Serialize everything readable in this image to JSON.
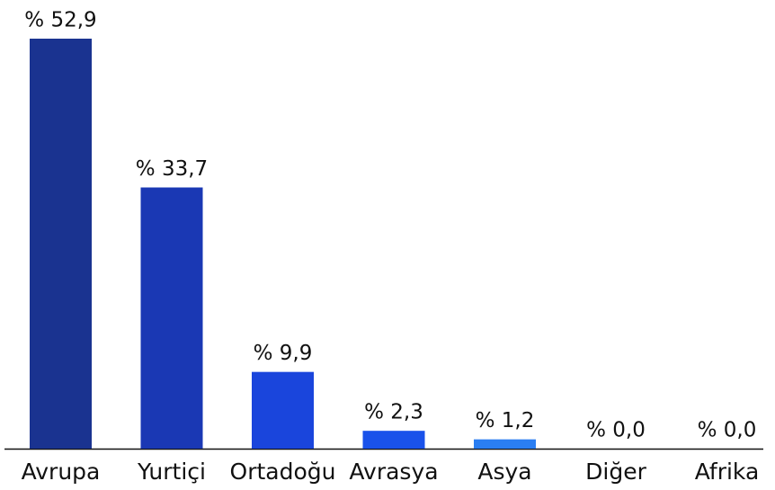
{
  "chart_data": {
    "type": "bar",
    "categories": [
      "Avrupa",
      "Yurtiçi",
      "Ortadoğu",
      "Avrasya",
      "Asya",
      "Diğer",
      "Afrika"
    ],
    "values": [
      52.9,
      33.7,
      9.9,
      2.3,
      1.2,
      0.0,
      0.0
    ],
    "value_labels": [
      "% 52,9",
      "% 33,7",
      "% 9,9",
      "% 2,3",
      "% 1,2",
      "% 0,0",
      "% 0,0"
    ],
    "colors": [
      "#1a3390",
      "#1a38b4",
      "#1a45dc",
      "#1a52ea",
      "#2a7ef2",
      "#2a8ef4",
      "#2a9ef6"
    ]
  }
}
